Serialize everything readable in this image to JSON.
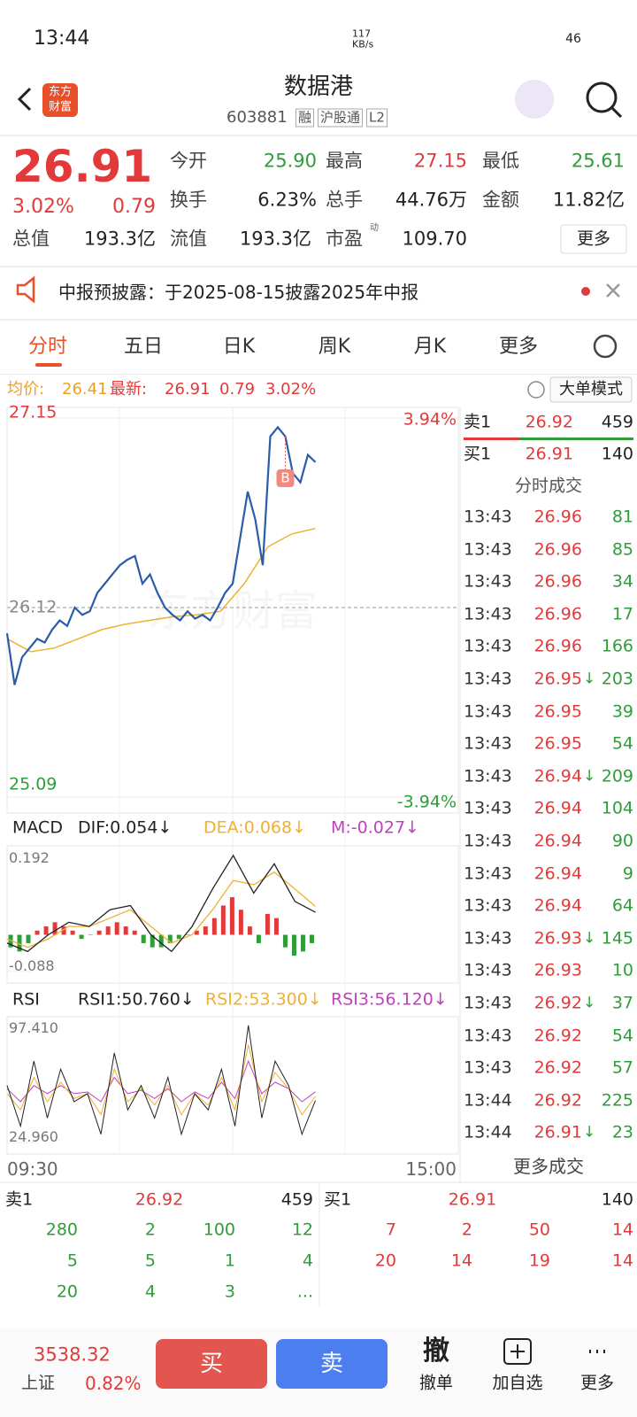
{
  "status": {
    "time": "13:44",
    "speed_value": "117",
    "speed_unit": "KB/s",
    "battery": "46"
  },
  "header": {
    "logo_top": "东方",
    "logo_bottom": "财富",
    "title": "数据港",
    "code": "603881",
    "tags": [
      "融",
      "沪股通",
      "L2"
    ]
  },
  "quote": {
    "price": "26.91",
    "change_pct": "3.02%",
    "change": "0.79",
    "more": "更多",
    "pe_tag": "动",
    "fields": [
      {
        "label": "今开",
        "value": "25.90",
        "color": "#2e9d3a"
      },
      {
        "label": "最高",
        "value": "27.15",
        "color": "#e23a3a"
      },
      {
        "label": "最低",
        "value": "25.61",
        "color": "#2e9d3a"
      },
      {
        "label": "换手",
        "value": "6.23%",
        "color": "#222222"
      },
      {
        "label": "总手",
        "value": "44.76万",
        "color": "#222222"
      },
      {
        "label": "金额",
        "value": "11.82亿",
        "color": "#222222"
      },
      {
        "label": "总值",
        "value": "193.3亿",
        "color": "#222222"
      },
      {
        "label": "流值",
        "value": "193.3亿",
        "color": "#222222"
      },
      {
        "label": "市盈",
        "value": "109.70",
        "color": "#222222"
      }
    ]
  },
  "notice": {
    "text": "中报预披露：于2025-08-15披露2025年中报"
  },
  "tabs": [
    "分时",
    "五日",
    "日K",
    "周K",
    "月K",
    "更多"
  ],
  "info": {
    "avg_label": "均价:",
    "avg": "26.41",
    "last_label": "最新:",
    "last": "26.91",
    "change": "0.79",
    "change_pct": "3.02%",
    "mode": "大单模式"
  },
  "price_chart": {
    "type": "line",
    "ylim": [
      25.09,
      27.15
    ],
    "yticks": [
      27.15,
      26.12,
      25.09
    ],
    "pct_top": "3.94%",
    "pct_bottom": "-3.94%",
    "x_labels": [
      "09:30",
      "15:00"
    ],
    "watermark": "东方财富",
    "marker": "B",
    "price_color": "#2a5caa",
    "avg_color": "#f0b030",
    "price": [
      25.98,
      25.7,
      25.85,
      25.9,
      25.95,
      25.93,
      26.0,
      26.05,
      26.02,
      26.12,
      26.08,
      26.1,
      26.2,
      26.25,
      26.3,
      26.35,
      26.38,
      26.4,
      26.25,
      26.3,
      26.2,
      26.12,
      26.08,
      26.05,
      26.1,
      26.06,
      26.08,
      26.05,
      26.12,
      26.2,
      26.25,
      26.5,
      26.75,
      26.6,
      26.35,
      27.05,
      27.1,
      27.05,
      26.85,
      26.8,
      26.95,
      26.91
    ],
    "avg": [
      25.95,
      25.88,
      25.9,
      25.95,
      26.0,
      26.03,
      26.05,
      26.07,
      26.08,
      26.1,
      26.25,
      26.45,
      26.52,
      26.55
    ]
  },
  "macd": {
    "label": "MACD",
    "dif": "DIF:0.054↓",
    "dea": "DEA:0.068↓",
    "m": "M:-0.027↓",
    "ylim": [
      -0.088,
      0.192
    ],
    "yticks": [
      0.192,
      -0.088
    ],
    "hist": [
      -0.03,
      -0.04,
      -0.02,
      0.01,
      0.02,
      0.03,
      0.02,
      0.01,
      -0.01,
      0.0,
      0.01,
      0.02,
      0.03,
      0.02,
      0.01,
      -0.02,
      -0.03,
      -0.03,
      -0.02,
      -0.01,
      0.0,
      0.01,
      0.02,
      0.04,
      0.07,
      0.09,
      0.06,
      0.02,
      -0.02,
      0.05,
      0.04,
      -0.03,
      -0.05,
      -0.04,
      -0.02
    ],
    "dif_line": [
      -0.02,
      -0.04,
      0.0,
      0.03,
      0.02,
      0.06,
      0.07,
      0.0,
      -0.04,
      0.02,
      0.11,
      0.19,
      0.1,
      0.17,
      0.08,
      0.054
    ],
    "dea_line": [
      -0.01,
      -0.03,
      -0.01,
      0.02,
      0.02,
      0.04,
      0.06,
      0.02,
      -0.02,
      0.0,
      0.06,
      0.13,
      0.12,
      0.15,
      0.11,
      0.068
    ]
  },
  "rsi": {
    "label": "RSI",
    "r1": "RSI1:50.760↓",
    "r2": "RSI2:53.300↓",
    "r3": "RSI3:56.120↓",
    "ylim": [
      24.96,
      97.41
    ],
    "yticks": [
      {
        "value": 97.41,
        "label": "97.410"
      },
      {
        "value": 24.96,
        "label": "24.960"
      }
    ],
    "rsi1": [
      60,
      35,
      75,
      40,
      70,
      50,
      55,
      30,
      80,
      45,
      60,
      40,
      65,
      30,
      55,
      45,
      70,
      35,
      97,
      40,
      75,
      60,
      30,
      50.76
    ],
    "rsi2": [
      55,
      45,
      65,
      50,
      62,
      52,
      55,
      42,
      70,
      50,
      58,
      48,
      60,
      42,
      55,
      48,
      65,
      45,
      85,
      50,
      68,
      58,
      42,
      53.3
    ],
    "rsi3": [
      58,
      50,
      60,
      55,
      60,
      55,
      56,
      50,
      65,
      55,
      57,
      52,
      58,
      50,
      56,
      52,
      62,
      52,
      75,
      55,
      62,
      58,
      50,
      56.12
    ]
  },
  "side": {
    "ask": {
      "label": "卖1",
      "price": "26.92",
      "vol": "459"
    },
    "bid": {
      "label": "买1",
      "price": "26.91",
      "vol": "140"
    },
    "trades_title": "分时成交",
    "more_trades": "更多成交",
    "trades": [
      [
        "13:43",
        "26.96",
        "81"
      ],
      [
        "13:43",
        "26.96",
        "85"
      ],
      [
        "13:43",
        "26.96",
        "34"
      ],
      [
        "13:43",
        "26.96",
        "17"
      ],
      [
        "13:43",
        "26.96",
        "166"
      ],
      [
        "13:43",
        "26.95",
        "203",
        "↓"
      ],
      [
        "13:43",
        "26.95",
        "39"
      ],
      [
        "13:43",
        "26.95",
        "54"
      ],
      [
        "13:43",
        "26.94",
        "209",
        "↓"
      ],
      [
        "13:43",
        "26.94",
        "104"
      ],
      [
        "13:43",
        "26.94",
        "90"
      ],
      [
        "13:43",
        "26.94",
        "9"
      ],
      [
        "13:43",
        "26.94",
        "64"
      ],
      [
        "13:43",
        "26.93",
        "145",
        "↓"
      ],
      [
        "13:43",
        "26.93",
        "10"
      ],
      [
        "13:43",
        "26.92",
        "37",
        "↓"
      ],
      [
        "13:43",
        "26.92",
        "54"
      ],
      [
        "13:43",
        "26.92",
        "57"
      ],
      [
        "13:44",
        "26.92",
        "225"
      ],
      [
        "13:44",
        "26.91",
        "23",
        "↓"
      ]
    ]
  },
  "book": {
    "ask": {
      "label": "卖1",
      "price": "26.92",
      "vol": "459",
      "rows": [
        [
          "280",
          "2",
          "100",
          "12"
        ],
        [
          "5",
          "5",
          "1",
          "4"
        ],
        [
          "20",
          "4",
          "3",
          "..."
        ]
      ]
    },
    "bid": {
      "label": "买1",
      "price": "26.91",
      "vol": "140",
      "rows": [
        [
          "7",
          "2",
          "50",
          "14"
        ],
        [
          "20",
          "14",
          "19",
          "14"
        ]
      ]
    }
  },
  "bottom": {
    "index_value": "3538.32",
    "index_name": "上证",
    "index_pct": "0.82%",
    "buy": "买",
    "sell": "卖",
    "cancel_icon": "撤",
    "cancel": "撤单",
    "add": "加自选",
    "more": "更多"
  }
}
